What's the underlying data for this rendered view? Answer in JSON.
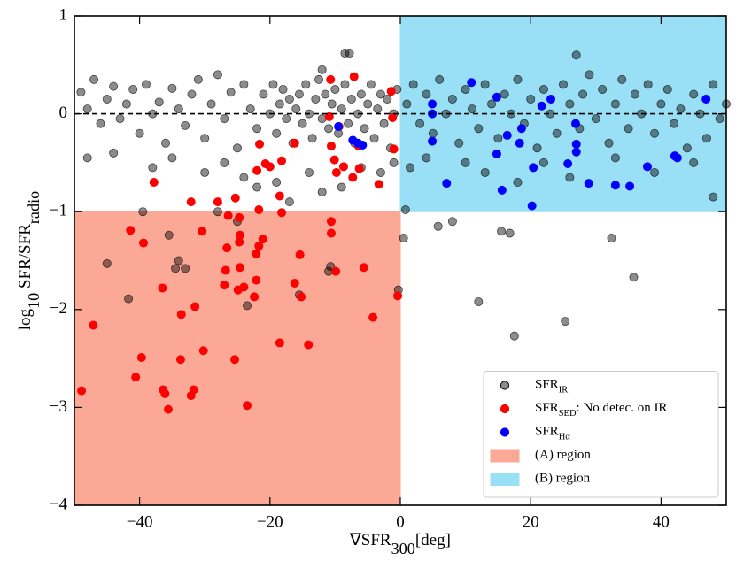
{
  "chart_data": {
    "type": "scatter",
    "xlabel": [
      {
        "text": "∇SFR"
      },
      {
        "sub": "300"
      },
      {
        "text": "[deg]"
      }
    ],
    "ylabel": [
      {
        "text": "log"
      },
      {
        "sub": "10"
      },
      {
        "text": " SFR/SFR"
      },
      {
        "sub": "radio"
      }
    ],
    "xlim": [
      -50,
      50
    ],
    "ylim": [
      -4,
      1
    ],
    "xticks": [
      {
        "value": -40,
        "label": "−40"
      },
      {
        "value": -20,
        "label": "−20"
      },
      0,
      20,
      40
    ],
    "yticks": [
      {
        "value": -4,
        "label": "−4"
      },
      {
        "value": -3,
        "label": "−3"
      },
      {
        "value": -2,
        "label": "−2"
      },
      {
        "value": -1,
        "label": "−1"
      },
      0,
      1
    ],
    "hline": 0,
    "legend": "lower right",
    "regions": [
      {
        "name": [
          {
            "text": "(A) region"
          }
        ],
        "color": "#fca896",
        "xrange": [
          -50,
          0
        ],
        "yrange": [
          -4,
          -1
        ]
      },
      {
        "name": [
          {
            "text": "(B) region"
          }
        ],
        "color": "#99dff5",
        "xrange": [
          0,
          50
        ],
        "yrange": [
          -1,
          1
        ]
      }
    ],
    "series": [
      {
        "name": [
          {
            "text": "SFR"
          },
          {
            "sub": "IR"
          }
        ],
        "color": "#000000",
        "alpha": 0.45,
        "x": [
          -49,
          -48,
          -47,
          -46,
          -45,
          -44,
          -43,
          -42,
          -41,
          -40,
          -39,
          -38,
          -37,
          -36,
          -35,
          -34,
          -33,
          -32,
          -31,
          -30,
          -29,
          -28,
          -27,
          -26,
          -25,
          -24,
          -23,
          -22,
          -21,
          -20,
          -19.5,
          -19,
          -18.5,
          -18,
          -17.5,
          -17,
          -16.5,
          -16,
          -15.5,
          -15,
          -14.5,
          -14,
          -13.5,
          -13,
          -12.5,
          -12,
          -11.5,
          -11,
          -10.5,
          -10,
          -9.5,
          -9,
          -8.5,
          -8,
          -7.5,
          -7,
          -6.5,
          -6,
          -5.5,
          -5,
          -4.5,
          -4,
          -3.5,
          -3,
          -2.5,
          -2,
          -1.5,
          -1,
          -0.5,
          1,
          2,
          3,
          4,
          5,
          6,
          7,
          8,
          9,
          10,
          11,
          12,
          13,
          14,
          15,
          16,
          17,
          18,
          19,
          20,
          21,
          22,
          23,
          24,
          25,
          26,
          27,
          27.5,
          28,
          29,
          30,
          31,
          32,
          33,
          34,
          35,
          36,
          37,
          38,
          39,
          40,
          41,
          42,
          43,
          44,
          45,
          46,
          47,
          48,
          49,
          50,
          -48,
          -44,
          -38,
          -35,
          -30,
          -27,
          -24,
          -22,
          -19,
          -17,
          -14,
          -12,
          -9,
          -6,
          -3,
          -1,
          1.5,
          4,
          10,
          13,
          18,
          22,
          26,
          33,
          39,
          45,
          48,
          -8.5,
          -7.8,
          -12,
          -45,
          -41.7,
          -34,
          -34.5,
          -33,
          -35.5,
          -23.5,
          -10.7,
          -11,
          -0.3,
          0.5,
          5.8,
          8,
          12,
          15.5,
          16.8,
          17.5,
          25.3,
          32.4,
          35.8,
          0.8,
          -39.5,
          -28,
          -15.5,
          -25
        ],
        "values": [
          0.22,
          0.05,
          0.35,
          -0.1,
          0.15,
          0.28,
          -0.05,
          0.1,
          0.25,
          -0.2,
          0.3,
          0.0,
          0.12,
          -0.3,
          0.26,
          0.05,
          -0.12,
          0.2,
          0.35,
          -0.25,
          0.1,
          0.4,
          -0.05,
          0.22,
          -0.35,
          0.3,
          0.05,
          -0.15,
          0.2,
          0.0,
          0.3,
          -0.2,
          0.1,
          0.25,
          -0.05,
          0.15,
          -0.3,
          0.05,
          0.2,
          -0.1,
          0.3,
          0.0,
          -0.25,
          0.15,
          0.35,
          -0.05,
          0.2,
          -0.15,
          0.1,
          0.25,
          -0.2,
          0.05,
          0.3,
          -0.1,
          0.15,
          -0.3,
          0.0,
          0.2,
          -0.15,
          0.1,
          0.3,
          -0.25,
          0.05,
          0.2,
          -0.1,
          0.15,
          -0.35,
          0.0,
          0.25,
          0.1,
          0.3,
          -0.1,
          0.2,
          -0.2,
          0.35,
          0.0,
          0.15,
          -0.3,
          0.25,
          0.05,
          -0.15,
          0.3,
          0.1,
          -0.25,
          0.2,
          0.0,
          0.35,
          -0.1,
          0.15,
          -0.35,
          0.25,
          0.0,
          -0.2,
          0.3,
          0.1,
          0.6,
          -0.15,
          0.2,
          0.4,
          -0.05,
          0.25,
          -0.3,
          0.1,
          0.35,
          -0.15,
          0.2,
          0.0,
          0.3,
          -0.2,
          0.1,
          0.25,
          -0.1,
          0.05,
          -0.35,
          0.2,
          0.0,
          -0.25,
          0.3,
          -0.05,
          0.1,
          -0.45,
          -0.4,
          -0.55,
          -0.45,
          -0.6,
          -0.5,
          -0.65,
          -0.75,
          -0.7,
          -0.9,
          -0.6,
          -0.8,
          -0.75,
          -0.55,
          -0.6,
          -0.5,
          -0.55,
          -0.45,
          -0.5,
          -0.6,
          -0.7,
          -0.5,
          -0.65,
          -0.45,
          -0.6,
          -0.5,
          -0.85,
          0.62,
          0.62,
          0.45,
          -1.53,
          -1.89,
          -1.5,
          -1.58,
          -1.58,
          -1.24,
          -1.96,
          -1.56,
          -1.61,
          -1.8,
          -1.27,
          -1.15,
          -1.1,
          -1.92,
          -1.2,
          -1.22,
          -2.27,
          -2.12,
          -1.27,
          -1.67,
          -0.98,
          -1.0,
          -1.0,
          -1.85,
          -1.1
        ]
      },
      {
        "name": [
          {
            "text": "SFR"
          },
          {
            "sub": "SED"
          },
          {
            "text": ": No detec. on IR"
          }
        ],
        "color": "#ff0000",
        "alpha": 1,
        "x": [
          -37.8,
          -32.1,
          -28,
          -25.3,
          -21.6,
          -20.7,
          -20,
          -18.2,
          -22,
          -16.2,
          -18.5,
          -18.2,
          -21.7,
          -10.7,
          -10.9,
          -10.6,
          -10.1,
          -9.4,
          -9.8,
          -8.7,
          -7.3,
          -7.1,
          -6.3,
          -6.4,
          -3.3,
          -1.4,
          -1.2,
          -1,
          -0.4,
          -10.6,
          -10.6,
          -15.4,
          -15.2,
          -16.2,
          -14.1,
          -18.5,
          -9.9,
          -5.6,
          -4.2,
          -41.4,
          -39.4,
          -47.1,
          -48.9,
          -39.7,
          -40.6,
          -36.5,
          -36.1,
          -36.4,
          -35.6,
          -33.6,
          -33.7,
          -31.5,
          -31.7,
          -32.1,
          -30.4,
          -30.2,
          -26.8,
          -26.6,
          -27,
          -25.4,
          -26.4,
          -24.7,
          -24.6,
          -24.7,
          -24.6,
          -24.9,
          -24,
          -23.5,
          -22.4,
          -22.1,
          -22.1,
          -21.7,
          -21.1
        ],
        "values": [
          -0.7,
          -0.9,
          -0.9,
          -0.86,
          -0.31,
          -0.51,
          -0.54,
          -0.48,
          -0.58,
          -0.3,
          -0.84,
          -1.01,
          -0.98,
          0.35,
          -0.03,
          -0.33,
          -0.47,
          -0.13,
          -0.6,
          -0.54,
          -0.65,
          0.38,
          -0.56,
          -0.33,
          -0.72,
          0.23,
          -0.04,
          -0.36,
          -1.86,
          -1.1,
          -1.22,
          -1.44,
          -1.87,
          -1.73,
          -2.36,
          -2.34,
          -1.61,
          -1.57,
          -2.08,
          -1.19,
          -1.32,
          -2.16,
          -2.83,
          -2.49,
          -2.69,
          -1.78,
          -2.86,
          -2.82,
          -3.02,
          -2.05,
          -2.51,
          -1.97,
          -2.82,
          -2.88,
          -1.2,
          -2.42,
          -1.6,
          -1.37,
          -1.75,
          -2.51,
          -1.04,
          -1.06,
          -1.24,
          -1.31,
          -1.57,
          -1.8,
          -1.77,
          -2.98,
          -1.87,
          -1.43,
          -1.7,
          -1.35,
          -1.28
        ]
      },
      {
        "name": [
          {
            "text": "SFR"
          },
          {
            "sub": "Hα"
          }
        ],
        "color": "#0000ff",
        "alpha": 1,
        "x": [
          10.9,
          4.9,
          4.9,
          4.9,
          7.1,
          14.8,
          14.8,
          15.6,
          16.4,
          18.3,
          18.6,
          20.4,
          20.2,
          21.7,
          23.1,
          25.7,
          26.9,
          27,
          27,
          28.9,
          33,
          35.2,
          37.9,
          42.1,
          42.5,
          46.9,
          -7.3,
          -6.5,
          -5.8,
          -9.5
        ],
        "values": [
          0.32,
          0.1,
          0.0,
          -0.28,
          -0.71,
          0.17,
          -0.41,
          -0.78,
          -0.22,
          -0.3,
          -0.15,
          -0.55,
          -0.94,
          0.08,
          0.15,
          -0.51,
          -0.1,
          -0.31,
          -0.39,
          -0.71,
          -0.73,
          -0.74,
          -0.54,
          -0.43,
          -0.45,
          0.15,
          -0.27,
          -0.3,
          -0.32,
          -0.13
        ]
      }
    ]
  }
}
